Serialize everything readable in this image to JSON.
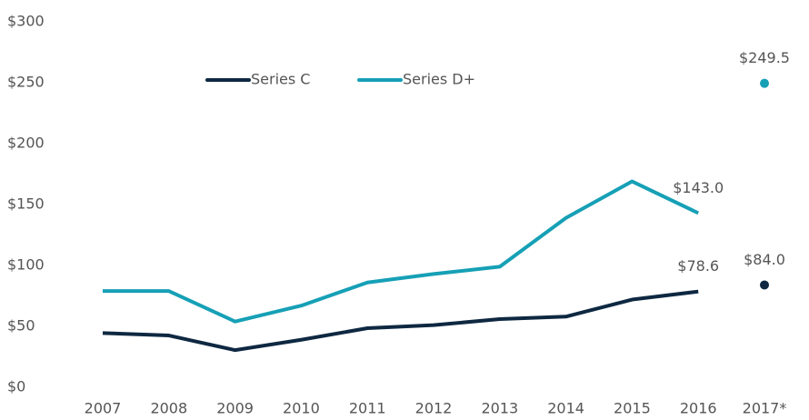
{
  "chart_data": {
    "type": "line",
    "categories": [
      "2007",
      "2008",
      "2009",
      "2010",
      "2011",
      "2012",
      "2013",
      "2014",
      "2015",
      "2016",
      "2017*"
    ],
    "series": [
      {
        "name": "Series C",
        "color": "#0e2841",
        "values": [
          44.5,
          42.5,
          30.5,
          39,
          48.5,
          51,
          56,
          58,
          72,
          78.6,
          84.0
        ],
        "value_labels": [
          null,
          null,
          null,
          null,
          null,
          null,
          null,
          null,
          null,
          "$78.6",
          "$84.0"
        ]
      },
      {
        "name": "Series D+",
        "color": "#16a0b6",
        "values": [
          79,
          79,
          54,
          67,
          86,
          93,
          99,
          139,
          169,
          143.0,
          249.5
        ],
        "value_labels": [
          null,
          null,
          null,
          null,
          null,
          null,
          null,
          null,
          null,
          "$143.0",
          "$249.5"
        ]
      }
    ],
    "ylim": [
      0,
      300
    ],
    "yticks": [
      {
        "value": 0,
        "label": "$0"
      },
      {
        "value": 50,
        "label": "$50"
      },
      {
        "value": 100,
        "label": "$100"
      },
      {
        "value": 150,
        "label": "$150"
      },
      {
        "value": 200,
        "label": "$200"
      },
      {
        "value": 250,
        "label": "$250"
      },
      {
        "value": 300,
        "label": "$300"
      }
    ],
    "grid": false,
    "legend": "top"
  }
}
